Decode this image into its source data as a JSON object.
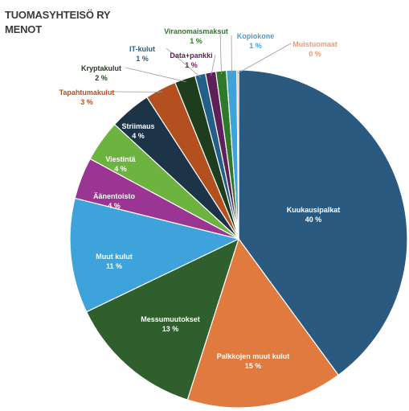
{
  "chart_data": {
    "type": "pie",
    "title": [
      "TUOMASYHTEISÖ RY",
      "MENOT"
    ],
    "slices": [
      {
        "label": "Kuukausipalkat",
        "value": 40,
        "display": "40 %",
        "color": "#2a5a80",
        "label_color": "#ffffff"
      },
      {
        "label": "Palkkojen muut kulut",
        "value": 15,
        "display": "15 %",
        "color": "#e07a3f",
        "label_color": "#ffffff"
      },
      {
        "label": "Messumuutokset",
        "value": 13,
        "display": "13 %",
        "color": "#2e5f2c",
        "label_color": "#ffffff"
      },
      {
        "label": "Muut kulut",
        "value": 11,
        "display": "11 %",
        "color": "#3ea2db",
        "label_color": "#ffffff"
      },
      {
        "label": "Äänentoisto",
        "value": 4,
        "display": "4 %",
        "color": "#9b3594",
        "label_color": "#ffffff"
      },
      {
        "label": "Viestintä",
        "value": 4,
        "display": "4 %",
        "color": "#6db33f",
        "label_color": "#ffffff"
      },
      {
        "label": "Striimaus",
        "value": 4,
        "display": "4 %",
        "color": "#1d3448",
        "label_color": "#ffffff"
      },
      {
        "label": "Tapahtumakulut",
        "value": 3,
        "display": "3 %",
        "color": "#b4501f",
        "label_color": "#b4501f"
      },
      {
        "label": "Kryptakulut",
        "value": 2,
        "display": "2 %",
        "color": "#1e3d1c",
        "label_color": "#1e3d1c"
      },
      {
        "label": "IT-kulut",
        "value": 1,
        "display": "1 %",
        "color": "#245f8a",
        "label_color": "#245f8a"
      },
      {
        "label": "Data+pankki",
        "value": 1,
        "display": "1 %",
        "color": "#5e1f5a",
        "label_color": "#5e1f5a"
      },
      {
        "label": "Viranomaismaksut",
        "value": 1,
        "display": "1 %",
        "color": "#2f7a2a",
        "label_color": "#2f7a2a"
      },
      {
        "label": "Kopiokone",
        "value": 1,
        "display": "1 %",
        "color": "#3ea2db",
        "label_color": "#3ea2db"
      },
      {
        "label": "Muistuomaat",
        "value": 0,
        "display": "0 %",
        "color": "#ef9a70",
        "label_color": "#ef9a70"
      }
    ]
  }
}
